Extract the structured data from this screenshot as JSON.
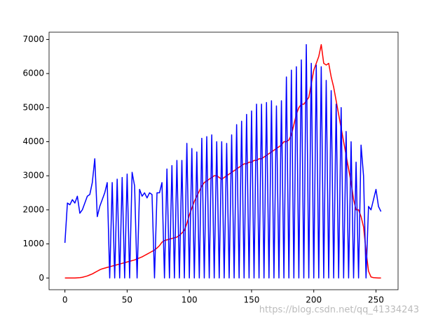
{
  "chart_data": {
    "type": "line",
    "x": [
      0,
      2,
      4,
      6,
      8,
      10,
      12,
      14,
      16,
      18,
      20,
      22,
      24,
      26,
      28,
      30,
      32,
      34,
      36,
      38,
      40,
      42,
      44,
      46,
      48,
      50,
      52,
      54,
      56,
      58,
      60,
      62,
      64,
      66,
      68,
      70,
      72,
      74,
      76,
      78,
      80,
      82,
      84,
      86,
      88,
      90,
      92,
      94,
      96,
      98,
      100,
      102,
      104,
      106,
      108,
      110,
      112,
      114,
      116,
      118,
      120,
      122,
      124,
      126,
      128,
      130,
      132,
      134,
      136,
      138,
      140,
      142,
      144,
      146,
      148,
      150,
      152,
      154,
      156,
      158,
      160,
      162,
      164,
      166,
      168,
      170,
      172,
      174,
      176,
      178,
      180,
      182,
      184,
      186,
      188,
      190,
      192,
      194,
      196,
      198,
      200,
      202,
      204,
      206,
      208,
      210,
      212,
      214,
      216,
      218,
      220,
      222,
      224,
      226,
      228,
      230,
      232,
      234,
      236,
      238,
      240,
      242,
      244,
      246,
      248,
      250,
      252,
      254
    ],
    "series": [
      {
        "color": "#ff0000",
        "values": [
          0,
          0,
          0,
          0,
          0,
          5,
          10,
          20,
          40,
          60,
          90,
          120,
          160,
          200,
          240,
          270,
          290,
          310,
          330,
          350,
          370,
          390,
          410,
          430,
          450,
          470,
          490,
          510,
          530,
          560,
          590,
          620,
          660,
          700,
          740,
          780,
          820,
          880,
          950,
          1050,
          1100,
          1120,
          1140,
          1160,
          1180,
          1200,
          1250,
          1320,
          1400,
          1600,
          1850,
          2050,
          2250,
          2400,
          2550,
          2700,
          2800,
          2850,
          2900,
          2950,
          3000,
          3000,
          2950,
          2900,
          2950,
          3000,
          3050,
          3100,
          3150,
          3200,
          3250,
          3300,
          3350,
          3350,
          3400,
          3400,
          3450,
          3450,
          3500,
          3500,
          3550,
          3600,
          3650,
          3700,
          3750,
          3800,
          3850,
          3900,
          4000,
          4000,
          4050,
          4200,
          4500,
          4800,
          5000,
          5100,
          5100,
          5200,
          5300,
          5700,
          6100,
          6300,
          6500,
          6850,
          6300,
          6250,
          6300,
          5900,
          5600,
          5200,
          4800,
          4400,
          4000,
          3600,
          3200,
          2800,
          2300,
          2000,
          2000,
          1800,
          1500,
          800,
          200,
          30,
          10,
          5,
          0,
          0
        ]
      },
      {
        "color": "#0000ff",
        "values": [
          1030,
          2200,
          2150,
          2300,
          2200,
          2400,
          1900,
          2000,
          2200,
          2400,
          2450,
          2800,
          3500,
          1800,
          2100,
          2300,
          2500,
          2800,
          0,
          2800,
          0,
          2900,
          0,
          2950,
          0,
          3050,
          0,
          3100,
          2700,
          0,
          2600,
          2400,
          2500,
          2350,
          2500,
          2450,
          0,
          2500,
          2500,
          2800,
          0,
          3200,
          0,
          3300,
          0,
          3450,
          0,
          3450,
          0,
          3950,
          0,
          3800,
          0,
          3700,
          0,
          4100,
          0,
          4150,
          0,
          4200,
          0,
          4000,
          0,
          4000,
          0,
          3950,
          0,
          4200,
          0,
          4500,
          0,
          4600,
          0,
          4800,
          0,
          4900,
          0,
          5100,
          0,
          5100,
          0,
          5150,
          0,
          5200,
          0,
          5050,
          0,
          5200,
          0,
          5900,
          0,
          6100,
          0,
          6200,
          0,
          6400,
          0,
          6850,
          0,
          6300,
          0,
          6250,
          0,
          6200,
          0,
          5800,
          0,
          5500,
          0,
          5100,
          0,
          5000,
          0,
          4300,
          0,
          4000,
          0,
          3400,
          0,
          3900,
          3000,
          0,
          2100,
          2000,
          2300,
          2600,
          2100,
          1950
        ]
      }
    ],
    "xlim": [
      -12.75,
      267.75
    ],
    "ylim": [
      -344,
      7214
    ],
    "xticks": [
      0,
      50,
      100,
      150,
      200,
      250
    ],
    "yticks": [
      0,
      1000,
      2000,
      3000,
      4000,
      5000,
      6000,
      7000
    ],
    "grid": false,
    "watermark": "https://blog.csdn.net/qq_41334243"
  }
}
